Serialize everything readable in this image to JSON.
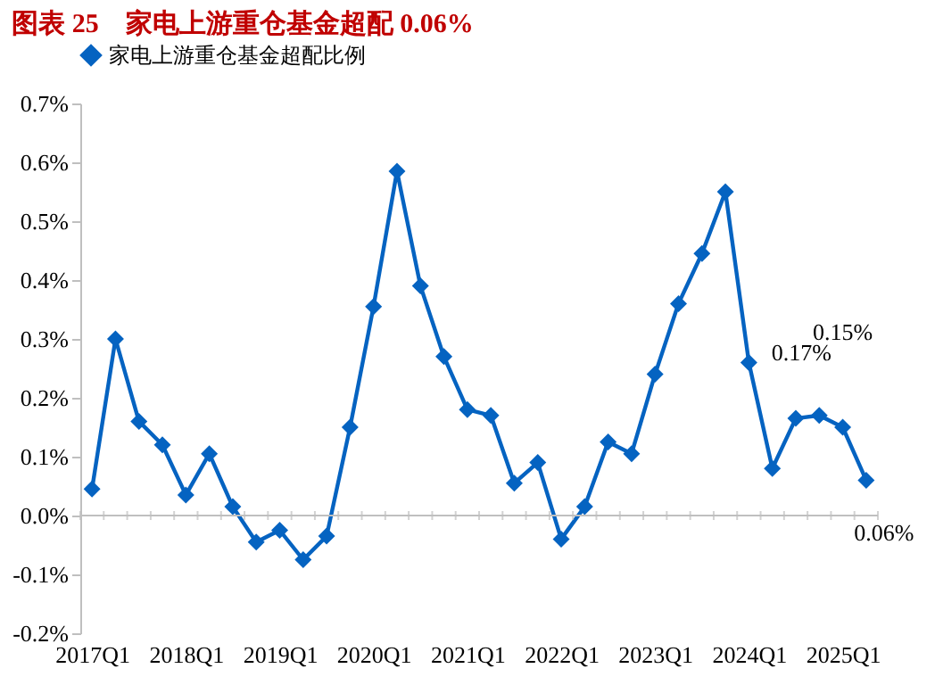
{
  "chart_data": {
    "type": "line",
    "title": "图表 25　家电上游重仓基金超配 0.06%",
    "categories": [
      "2017Q1",
      null,
      null,
      null,
      "2018Q1",
      null,
      null,
      null,
      "2019Q1",
      null,
      null,
      null,
      "2020Q1",
      null,
      null,
      null,
      "2021Q1",
      null,
      null,
      null,
      "2022Q1",
      null,
      null,
      null,
      "2023Q1",
      null,
      null,
      null,
      "2024Q1",
      null,
      null,
      null,
      "2025Q1",
      null
    ],
    "series": [
      {
        "name": "家电上游重仓基金超配比例",
        "color": "#0563c1",
        "values": [
          0.045,
          0.3,
          0.16,
          0.12,
          0.035,
          0.105,
          0.015,
          -0.045,
          -0.025,
          -0.075,
          -0.035,
          0.15,
          0.355,
          0.585,
          0.39,
          0.27,
          0.18,
          0.17,
          0.055,
          0.09,
          -0.04,
          0.015,
          0.125,
          0.105,
          0.24,
          0.36,
          0.445,
          0.55,
          0.26,
          0.08,
          0.165,
          0.17,
          0.15,
          0.06
        ],
        "value_labels": [
          null,
          null,
          null,
          null,
          null,
          null,
          null,
          null,
          null,
          null,
          null,
          null,
          null,
          null,
          null,
          null,
          null,
          null,
          null,
          null,
          null,
          null,
          null,
          null,
          null,
          null,
          null,
          null,
          null,
          null,
          null,
          "0.17%",
          "0.15%",
          "0.06%"
        ]
      }
    ],
    "ylim": [
      -0.2,
      0.7
    ],
    "yticks": [
      {
        "value": -0.2,
        "label": "-0.2%"
      },
      {
        "value": -0.1,
        "label": "-0.1%"
      },
      {
        "value": 0,
        "label": "0.0%"
      },
      {
        "value": 0.1,
        "label": "0.1%"
      },
      {
        "value": 0.2,
        "label": "0.2%"
      },
      {
        "value": 0.3,
        "label": "0.3%"
      },
      {
        "value": 0.4,
        "label": "0.4%"
      },
      {
        "value": 0.5,
        "label": "0.5%"
      },
      {
        "value": 0.6,
        "label": "0.6%"
      },
      {
        "value": 0.7,
        "label": "0.7%"
      }
    ],
    "ref_lines": [
      {
        "axis": "y",
        "value": 0,
        "color": "#bfbfbf"
      }
    ],
    "marker": "diamond",
    "line_style": "solid",
    "legend": "top",
    "grid": false
  }
}
